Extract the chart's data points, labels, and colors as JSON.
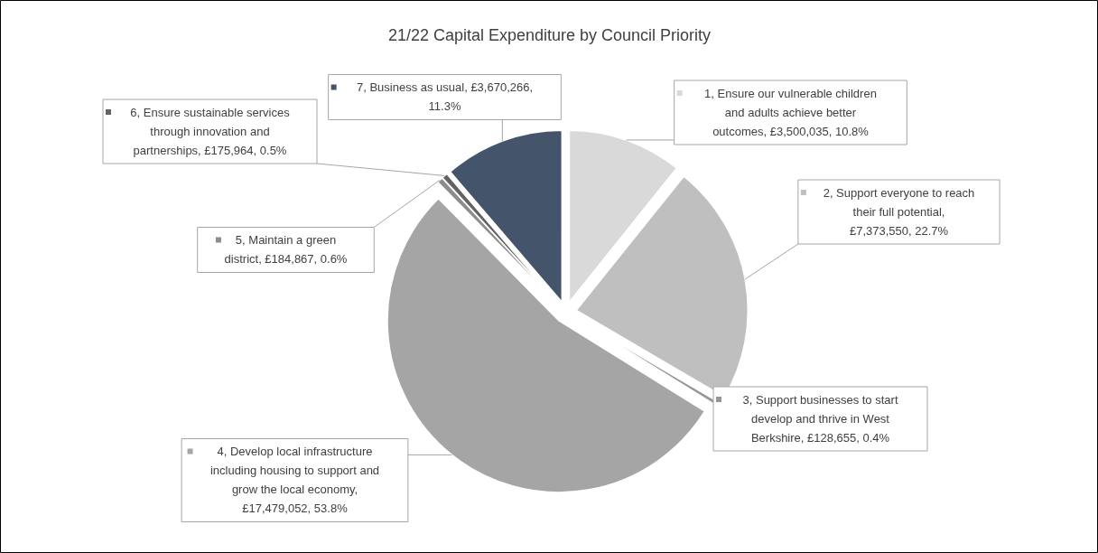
{
  "chart_data": {
    "type": "pie",
    "title": "21/22 Capital Expenditure by Council Priority",
    "categories": [
      "1, Ensure our vulnerable children and adults achieve better outcomes",
      "2, Support everyone to reach their full potential",
      "3, Support businesses to start develop and thrive in West Berkshire",
      "4, Develop local infrastructure including housing to support and grow the local economy",
      "5, Maintain a green district",
      "6, Ensure sustainable services through innovation and partnerships",
      "7, Business as usual"
    ],
    "values": [
      3500035,
      7373550,
      128655,
      17479052,
      184867,
      175964,
      3670266
    ],
    "legend": "top left",
    "colors": [
      "#d9d9d9",
      "#bfbfbf",
      "#969696",
      "#a5a5a5",
      "#8c8c8c",
      "#636363",
      "#44546a"
    ],
    "value_labels": [
      ", £3,500,035, 10.8%",
      ", £7,373,550, 22.7%",
      ", £128,655, 0.4%",
      ", £17,479,052, 53.8%",
      ", £184,867, 0.6%",
      ", £175,964, 0.5%",
      ", £3,670,266, 11.3%"
    ]
  }
}
